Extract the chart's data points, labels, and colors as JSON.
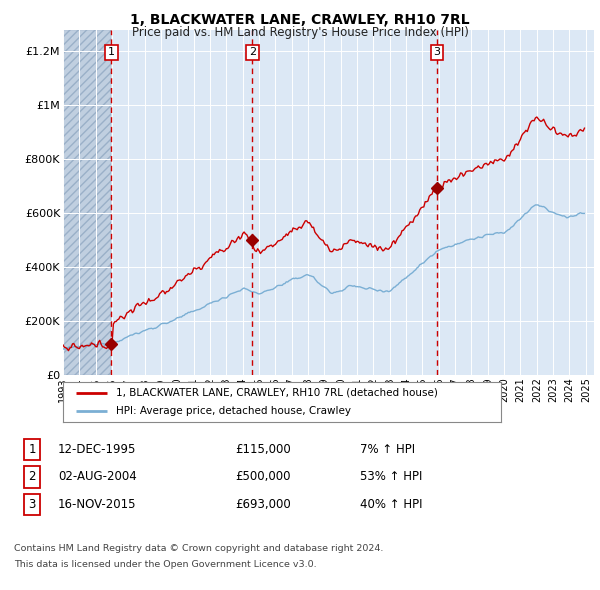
{
  "title": "1, BLACKWATER LANE, CRAWLEY, RH10 7RL",
  "subtitle": "Price paid vs. HM Land Registry's House Price Index (HPI)",
  "sale_prices": [
    115000,
    500000,
    693000
  ],
  "sale_labels": [
    "1",
    "2",
    "3"
  ],
  "legend_entries": [
    "1, BLACKWATER LANE, CRAWLEY, RH10 7RL (detached house)",
    "HPI: Average price, detached house, Crawley"
  ],
  "table_rows": [
    [
      "1",
      "12-DEC-1995",
      "£115,000",
      "7% ↑ HPI"
    ],
    [
      "2",
      "02-AUG-2004",
      "£500,000",
      "53% ↑ HPI"
    ],
    [
      "3",
      "16-NOV-2015",
      "£693,000",
      "40% ↑ HPI"
    ]
  ],
  "footnote1": "Contains HM Land Registry data © Crown copyright and database right 2024.",
  "footnote2": "This data is licensed under the Open Government Licence v3.0.",
  "hpi_color": "#7bafd4",
  "price_color": "#cc0000",
  "sale_marker_color": "#990000",
  "dashed_line_color": "#cc0000",
  "background_color": "#dce8f5",
  "hatch_color": "#c0cfe0",
  "grid_color": "#ffffff",
  "ylim": [
    0,
    1280000
  ],
  "yticks": [
    0,
    200000,
    400000,
    600000,
    800000,
    1000000,
    1200000
  ],
  "ytick_labels": [
    "£0",
    "£200K",
    "£400K",
    "£600K",
    "£800K",
    "£1M",
    "£1.2M"
  ],
  "xmin": 1993.0,
  "xmax": 2025.5,
  "sale_year_floats": [
    1995.96,
    2004.59,
    2015.88
  ]
}
